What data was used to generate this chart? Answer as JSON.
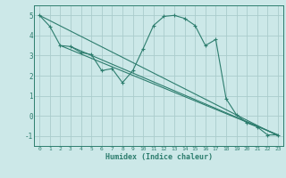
{
  "xlabel": "Humidex (Indice chaleur)",
  "bg_color": "#cce8e8",
  "grid_color": "#aacccc",
  "line_color": "#2d7d6e",
  "xlim": [
    -0.5,
    23.5
  ],
  "ylim": [
    -1.5,
    5.5
  ],
  "yticks": [
    -1,
    0,
    1,
    2,
    3,
    4,
    5
  ],
  "xticks": [
    0,
    1,
    2,
    3,
    4,
    5,
    6,
    7,
    8,
    9,
    10,
    11,
    12,
    13,
    14,
    15,
    16,
    17,
    18,
    19,
    20,
    21,
    22,
    23
  ],
  "series": [
    [
      0,
      5.0
    ],
    [
      1,
      4.45
    ],
    [
      2,
      3.5
    ],
    [
      3,
      3.45
    ],
    [
      4,
      3.15
    ],
    [
      5,
      3.05
    ],
    [
      6,
      2.25
    ],
    [
      7,
      2.35
    ],
    [
      8,
      1.65
    ],
    [
      9,
      2.25
    ],
    [
      10,
      3.35
    ],
    [
      11,
      4.5
    ],
    [
      12,
      4.95
    ],
    [
      13,
      5.0
    ],
    [
      14,
      4.85
    ],
    [
      15,
      4.5
    ],
    [
      16,
      3.5
    ],
    [
      17,
      3.8
    ],
    [
      18,
      0.85
    ],
    [
      19,
      0.05
    ],
    [
      20,
      -0.35
    ],
    [
      21,
      -0.55
    ],
    [
      22,
      -0.95
    ],
    [
      23,
      -0.95
    ]
  ],
  "linear1": [
    [
      0,
      5.0
    ],
    [
      23,
      -1.0
    ]
  ],
  "linear2": [
    [
      2,
      3.5
    ],
    [
      23,
      -0.95
    ]
  ],
  "linear3": [
    [
      3,
      3.45
    ],
    [
      23,
      -0.95
    ]
  ]
}
